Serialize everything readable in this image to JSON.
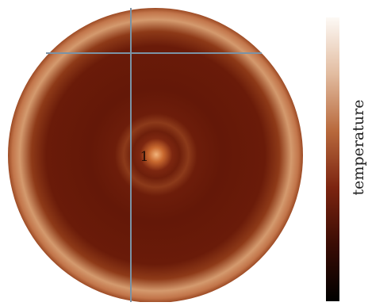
{
  "colorbar_label": "temperature",
  "marker_label": "1"
}
